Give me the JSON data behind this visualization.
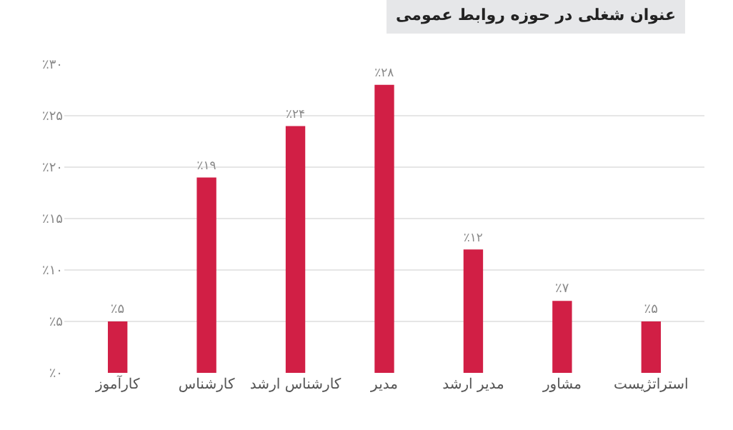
{
  "chart_data": {
    "type": "bar",
    "title": "عنوان شغلی در حوزه روابط عمومی",
    "categories": [
      "کارآموز",
      "کارشناس",
      "کارشناس ارشد",
      "مدیر",
      "مدیر ارشد",
      "مشاور",
      "استراتژیست"
    ],
    "values": [
      5,
      19,
      24,
      28,
      12,
      7,
      5
    ],
    "value_labels": [
      "٪۵",
      "٪۱۹",
      "٪۲۴",
      "٪۲۸",
      "٪۱۲",
      "٪۷",
      "٪۵"
    ],
    "color": "#d11f45",
    "ylim": [
      0,
      30
    ],
    "yticks": [
      {
        "value": 0,
        "label": "٪۰"
      },
      {
        "value": 5,
        "label": "٪۵"
      },
      {
        "value": 10,
        "label": "٪۱۰"
      },
      {
        "value": 15,
        "label": "٪۱۵"
      },
      {
        "value": 20,
        "label": "٪۲۰"
      },
      {
        "value": 25,
        "label": "٪۲۵"
      },
      {
        "value": 30,
        "label": "٪۳۰"
      }
    ],
    "grid": "y",
    "legend": false
  }
}
